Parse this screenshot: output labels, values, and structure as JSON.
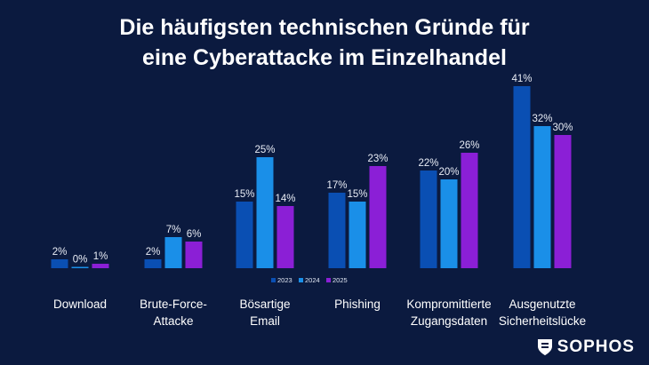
{
  "title": {
    "line1": "Die häufigsten technischen Gründe für",
    "line2": "eine Cyberattacke im Einzelhandel"
  },
  "brand": {
    "name": "SOPHOS",
    "icon": "sophos-shield-icon"
  },
  "chart_data": {
    "type": "bar",
    "title": "Die häufigsten technischen Gründe für eine Cyberattacke im Einzelhandel",
    "categories": [
      [
        "Download"
      ],
      [
        "Brute-Force-",
        "Attacke"
      ],
      [
        "Bösartige",
        "Email"
      ],
      [
        "Phishing"
      ],
      [
        "Kompromittierte",
        "Zugangsdaten"
      ],
      [
        "Ausgenutzte",
        "Sicherheitslücke"
      ]
    ],
    "series": [
      {
        "name": "2023",
        "color": "#0a4fb3",
        "values": [
          2,
          2,
          15,
          17,
          22,
          41
        ]
      },
      {
        "name": "2024",
        "color": "#1a8fe8",
        "values": [
          0,
          7,
          25,
          15,
          20,
          32
        ]
      },
      {
        "name": "2025",
        "color": "#8b1fd6",
        "values": [
          1,
          6,
          14,
          23,
          26,
          30
        ]
      }
    ],
    "value_suffix": "%",
    "ylim": [
      0,
      41
    ],
    "grid": false,
    "legend_position": "bottom-center"
  }
}
